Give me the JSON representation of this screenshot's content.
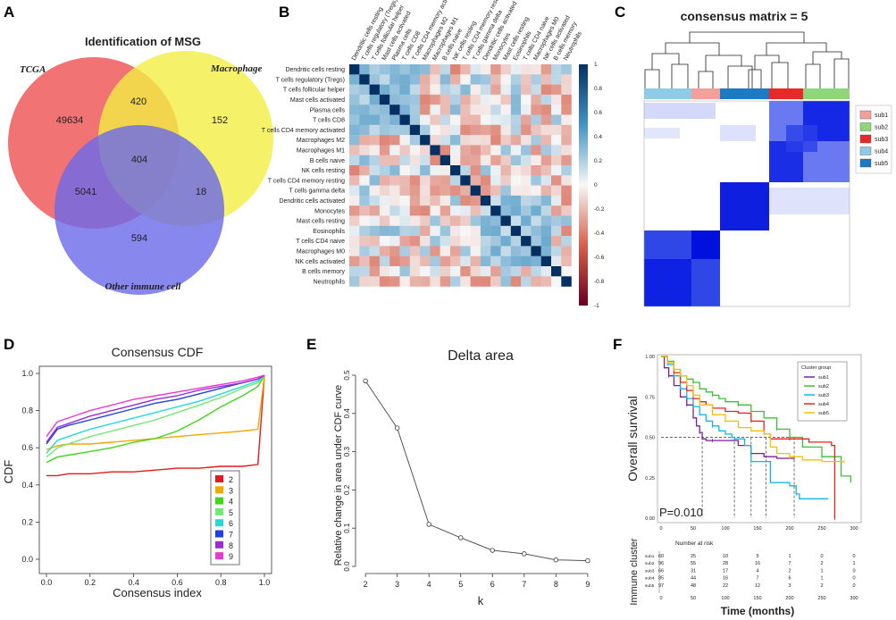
{
  "panel_labels": {
    "a": "A",
    "b": "B",
    "c": "C",
    "d": "D",
    "e": "E",
    "f": "F"
  },
  "venn": {
    "title": "Identification of MSG",
    "sets": [
      {
        "name": "TCGA",
        "color": "#f05a5a"
      },
      {
        "name": "Macrophage",
        "color": "#f3ee43"
      },
      {
        "name": "Other immune cell",
        "color": "#6a69ea"
      }
    ],
    "regions": {
      "tcga_only": "49634",
      "tcga_mac": "420",
      "mac_only": "152",
      "all": "404",
      "tcga_other": "5041",
      "mac_other": "18",
      "other_only": "594"
    }
  },
  "corr": {
    "cells": [
      "Dendritic cells resting",
      "T cells regulatory (Tregs)",
      "T cells follicular helper",
      "Mast cells activated",
      "Plasma cells",
      "T cells CD8",
      "T cells CD4 memory activated",
      "Macrophages M2",
      "Macrophages M1",
      "B cells naive",
      "NK cells resting",
      "T cells CD4 memory resting",
      "T cells gamma delta",
      "Dendritic cells activated",
      "Monocytes",
      "Mast cells resting",
      "Eosinophils",
      "T cells CD4 naive",
      "Macrophages M0",
      "NK cells activated",
      "B cells memory",
      "Neutrophils"
    ],
    "scale_ticks": [
      "1",
      "0.8",
      "0.6",
      "0.4",
      "0.2",
      "0",
      "-0.2",
      "-0.4",
      "-0.6",
      "-0.8",
      "-1"
    ]
  },
  "consensus": {
    "title": "consensus matrix = 5",
    "legend": [
      {
        "label": "sub1",
        "color": "#f4a09a"
      },
      {
        "label": "sub2",
        "color": "#8fd67a"
      },
      {
        "label": "sub3",
        "color": "#e62a2a"
      },
      {
        "label": "sub4",
        "color": "#8fcbe6"
      },
      {
        "label": "sub5",
        "color": "#1c7ac2"
      }
    ]
  },
  "chart_data": [
    {
      "type": "line",
      "title": "Consensus CDF",
      "xlabel": "Consensus index",
      "ylabel": "CDF",
      "xlim": [
        0,
        1
      ],
      "ylim": [
        0,
        1
      ],
      "xticks": [
        "0.0",
        "0.2",
        "0.4",
        "0.6",
        "0.8",
        "1.0"
      ],
      "yticks": [
        "0.0",
        "0.2",
        "0.4",
        "0.6",
        "0.8",
        "1.0"
      ],
      "x": [
        0,
        0.05,
        0.1,
        0.2,
        0.3,
        0.4,
        0.5,
        0.6,
        0.7,
        0.8,
        0.9,
        0.97,
        1.0
      ],
      "series": [
        {
          "name": "2",
          "color": "#e41a1c",
          "values": [
            0.45,
            0.45,
            0.46,
            0.46,
            0.47,
            0.47,
            0.48,
            0.49,
            0.49,
            0.5,
            0.5,
            0.51,
            0.99
          ]
        },
        {
          "name": "3",
          "color": "#f2a900",
          "values": [
            0.59,
            0.61,
            0.62,
            0.62,
            0.63,
            0.64,
            0.65,
            0.66,
            0.67,
            0.68,
            0.69,
            0.7,
            0.99
          ]
        },
        {
          "name": "4",
          "color": "#43d41e",
          "values": [
            0.52,
            0.55,
            0.56,
            0.58,
            0.6,
            0.63,
            0.65,
            0.69,
            0.75,
            0.82,
            0.88,
            0.93,
            0.99
          ]
        },
        {
          "name": "5",
          "color": "#73e873",
          "values": [
            0.55,
            0.6,
            0.62,
            0.66,
            0.69,
            0.72,
            0.75,
            0.79,
            0.83,
            0.87,
            0.92,
            0.95,
            0.99
          ]
        },
        {
          "name": "6",
          "color": "#28d8d6",
          "values": [
            0.57,
            0.64,
            0.66,
            0.7,
            0.73,
            0.76,
            0.79,
            0.82,
            0.85,
            0.89,
            0.93,
            0.96,
            0.99
          ]
        },
        {
          "name": "7",
          "color": "#2040e0",
          "values": [
            0.62,
            0.7,
            0.72,
            0.75,
            0.78,
            0.81,
            0.84,
            0.86,
            0.89,
            0.92,
            0.95,
            0.97,
            0.99
          ]
        },
        {
          "name": "8",
          "color": "#9a2bd8",
          "values": [
            0.63,
            0.71,
            0.73,
            0.77,
            0.8,
            0.83,
            0.86,
            0.88,
            0.91,
            0.93,
            0.95,
            0.97,
            0.99
          ]
        },
        {
          "name": "9",
          "color": "#e93ad2",
          "values": [
            0.66,
            0.74,
            0.76,
            0.8,
            0.83,
            0.86,
            0.88,
            0.9,
            0.92,
            0.94,
            0.96,
            0.98,
            0.99
          ]
        }
      ]
    },
    {
      "type": "line",
      "title": "Delta area",
      "xlabel": "k",
      "ylabel": "Relative change in area under CDF curve",
      "x": [
        2,
        3,
        4,
        5,
        6,
        7,
        8,
        9
      ],
      "values": [
        0.485,
        0.362,
        0.11,
        0.075,
        0.042,
        0.033,
        0.017,
        0.015
      ],
      "xlim": [
        1.8,
        9.2
      ],
      "ylim": [
        0,
        0.5
      ],
      "yticks": [
        "0.0",
        "0.1",
        "0.2",
        "0.3",
        "0.4",
        "0.5"
      ]
    },
    {
      "type": "line",
      "title": "",
      "xlabel": "Time (months)",
      "ylabel": "Overall survival",
      "xlim": [
        0,
        300
      ],
      "ylim": [
        0,
        1
      ],
      "xticks": [
        "0",
        "50",
        "100",
        "150",
        "200",
        "250",
        "300"
      ],
      "yticks": [
        "0.00",
        "0.25",
        "0.50",
        "0.75",
        "1.00"
      ],
      "pvalue": "P=0.010",
      "legend_title": "Cluster group",
      "medians": [
        64,
        114,
        140,
        163,
        207
      ],
      "series": [
        {
          "name": "sub1",
          "color": "#7b1fa2",
          "time": [
            0,
            5,
            12,
            20,
            30,
            40,
            50,
            55,
            60,
            64,
            70,
            80,
            100,
            120,
            140,
            160,
            180,
            207
          ],
          "surv": [
            1,
            0.93,
            0.88,
            0.82,
            0.75,
            0.7,
            0.62,
            0.57,
            0.53,
            0.49,
            0.48,
            0.48,
            0.48,
            0.45,
            0.4,
            0.38,
            0.37,
            0.37
          ]
        },
        {
          "name": "sub2",
          "color": "#3bbf3b",
          "time": [
            0,
            10,
            20,
            30,
            40,
            50,
            60,
            70,
            80,
            90,
            100,
            120,
            140,
            160,
            180,
            200,
            220,
            250,
            280,
            295
          ],
          "surv": [
            1,
            0.97,
            0.92,
            0.88,
            0.86,
            0.84,
            0.8,
            0.78,
            0.76,
            0.74,
            0.72,
            0.7,
            0.66,
            0.62,
            0.55,
            0.5,
            0.44,
            0.38,
            0.26,
            0.22
          ]
        },
        {
          "name": "sub3",
          "color": "#12b6e6",
          "time": [
            0,
            10,
            20,
            30,
            40,
            50,
            60,
            70,
            80,
            90,
            100,
            110,
            114,
            130,
            140,
            170,
            200,
            210,
            215,
            260
          ],
          "surv": [
            1,
            0.95,
            0.88,
            0.8,
            0.74,
            0.69,
            0.64,
            0.6,
            0.57,
            0.54,
            0.52,
            0.5,
            0.49,
            0.45,
            0.35,
            0.22,
            0.2,
            0.15,
            0.12,
            0.12
          ]
        },
        {
          "name": "sub4",
          "color": "#e8231c",
          "time": [
            0,
            10,
            20,
            30,
            40,
            50,
            60,
            70,
            80,
            100,
            120,
            140,
            160,
            170,
            200,
            230,
            265,
            270
          ],
          "surv": [
            1,
            0.96,
            0.9,
            0.84,
            0.79,
            0.74,
            0.72,
            0.7,
            0.68,
            0.66,
            0.65,
            0.6,
            0.52,
            0.49,
            0.49,
            0.47,
            0.45,
            0
          ]
        },
        {
          "name": "sub5",
          "color": "#f6c200",
          "time": [
            0,
            10,
            20,
            30,
            40,
            50,
            60,
            80,
            100,
            120,
            140,
            160,
            170,
            180,
            200,
            220,
            250,
            285
          ],
          "surv": [
            1,
            0.96,
            0.92,
            0.88,
            0.82,
            0.76,
            0.7,
            0.64,
            0.6,
            0.56,
            0.54,
            0.52,
            0.44,
            0.4,
            0.38,
            0.36,
            0.35,
            0.35
          ]
        }
      ],
      "risk_table": {
        "header": "Number at risk",
        "ylabel": "Immune cluster",
        "rows": [
          {
            "label": "sub1",
            "counts": [
              "60",
              "25",
              "10",
              "5",
              "1",
              "0",
              "0"
            ]
          },
          {
            "label": "sub2",
            "counts": [
              "96",
              "55",
              "28",
              "16",
              "7",
              "2",
              "1"
            ]
          },
          {
            "label": "sub3",
            "counts": [
              "66",
              "31",
              "17",
              "4",
              "2",
              "1",
              "0"
            ]
          },
          {
            "label": "sub4",
            "counts": [
              "85",
              "44",
              "16",
              "7",
              "6",
              "1",
              "0"
            ]
          },
          {
            "label": "sub5",
            "counts": [
              "97",
              "48",
              "22",
              "12",
              "3",
              "2",
              "0"
            ]
          }
        ]
      }
    }
  ]
}
